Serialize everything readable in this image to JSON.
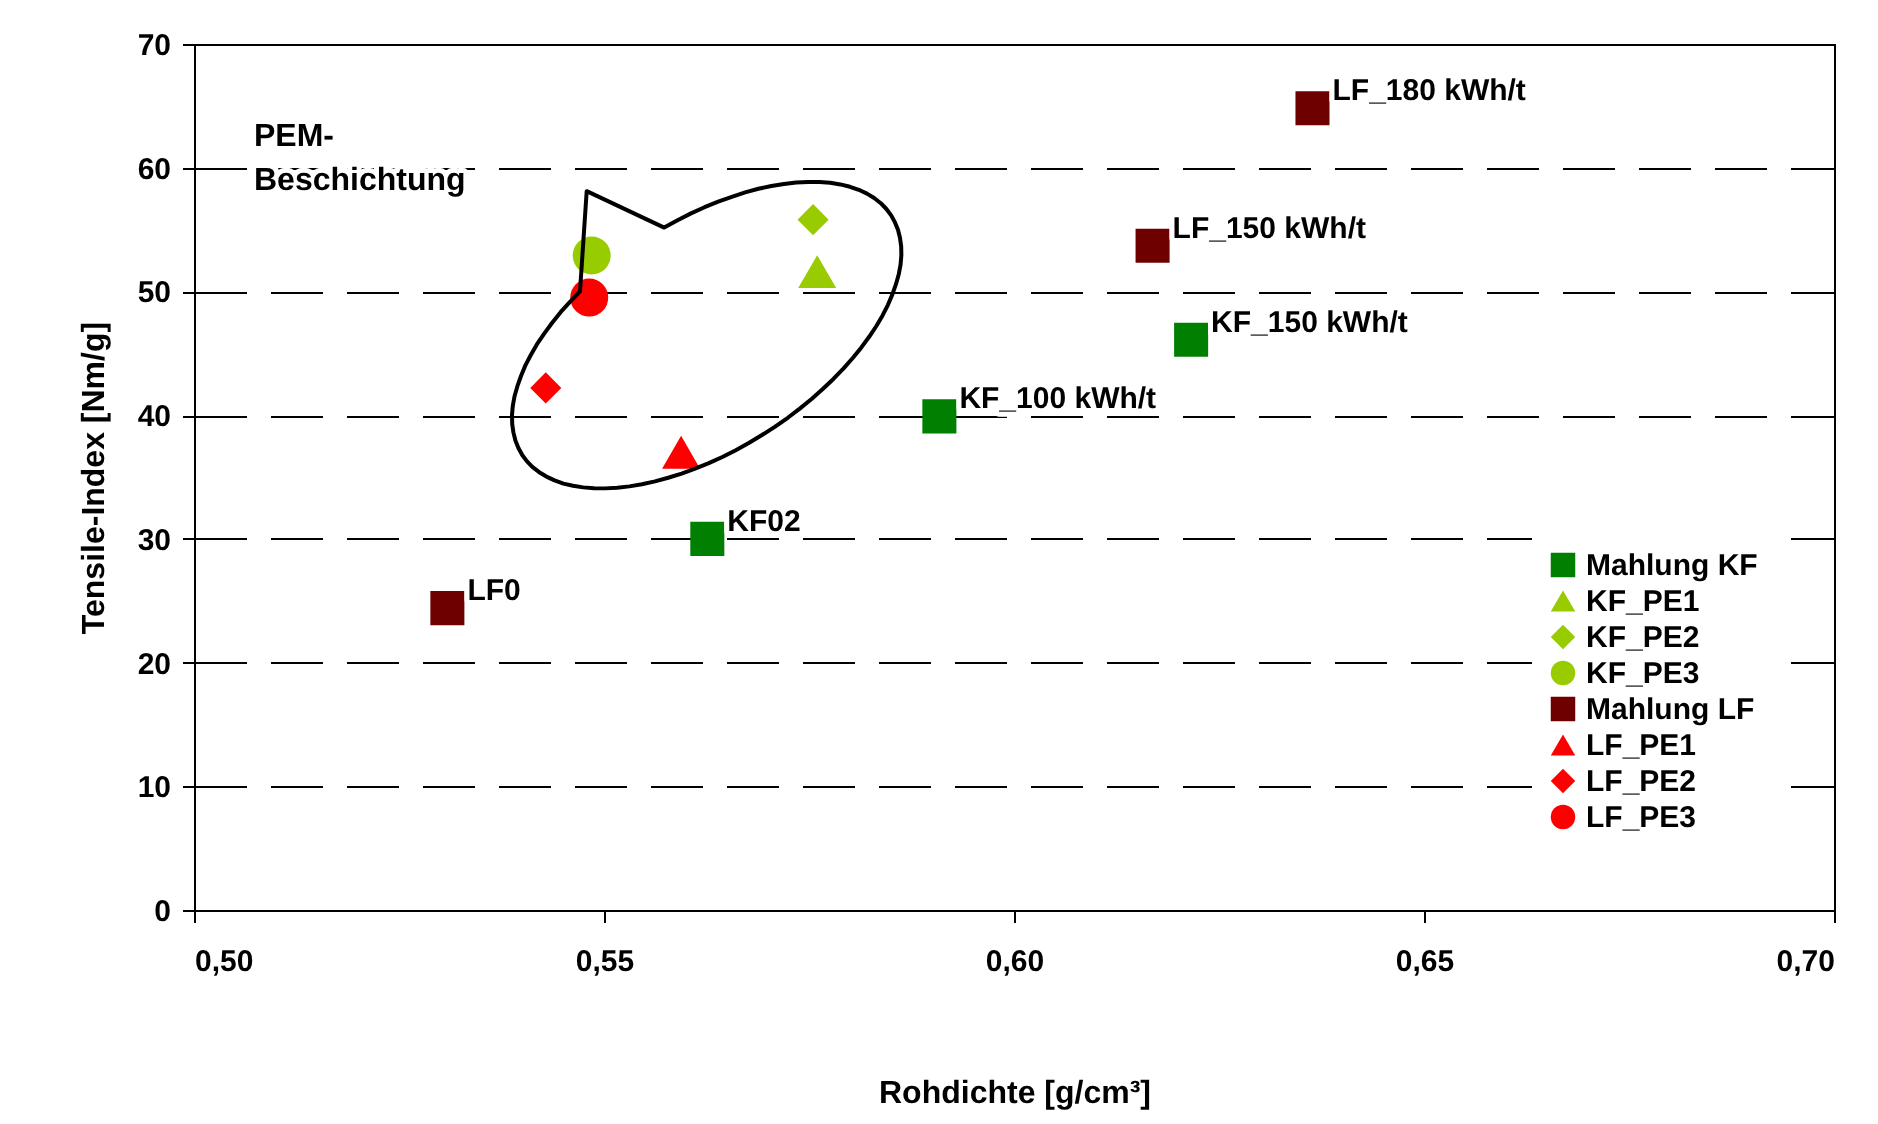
{
  "chart_data": {
    "type": "scatter",
    "xlabel": "Rohdichte [g/cm³]",
    "ylabel": "Tensile-Index [Nm/g]",
    "xlim": [
      0.5,
      0.7
    ],
    "xticks": [
      {
        "value": 0.5,
        "label": "0,50"
      },
      {
        "value": 0.55,
        "label": "0,55"
      },
      {
        "value": 0.6,
        "label": "0,60"
      },
      {
        "value": 0.65,
        "label": "0,65"
      },
      {
        "value": 0.7,
        "label": "0,70"
      }
    ],
    "ylim": [
      0,
      70
    ],
    "yticks": [
      0,
      10,
      20,
      30,
      40,
      50,
      60,
      70
    ],
    "grid": "y",
    "legend": "bottom right",
    "series": [
      {
        "name": "Mahlung KF",
        "color": "#007f00",
        "marker": "square",
        "x": [
          0.5626,
          0.5909,
          0.6216
        ],
        "values": [
          30,
          39.9,
          46.1
        ]
      },
      {
        "name": "KF_PE1",
        "color": "#99cc00",
        "marker": "triangle",
        "x": [
          0.576
        ],
        "values": [
          51.6
        ]
      },
      {
        "name": "KF_PE2",
        "color": "#99cc00",
        "marker": "diamond",
        "x": [
          0.5755
        ],
        "values": [
          55.8
        ]
      },
      {
        "name": "KF_PE3",
        "color": "#99cc00",
        "marker": "circle",
        "x": [
          0.5485
        ],
        "values": [
          52.9
        ]
      },
      {
        "name": "Mahlung LF",
        "color": "#6e0000",
        "marker": "square",
        "x": [
          0.5309,
          0.6169,
          0.6364
        ],
        "values": [
          24.4,
          53.7,
          64.8
        ]
      },
      {
        "name": "LF_PE1",
        "color": "#ff0000",
        "marker": "triangle",
        "x": [
          0.5594
        ],
        "values": [
          37.0
        ]
      },
      {
        "name": "LF_PE2",
        "color": "#ff0000",
        "marker": "diamond",
        "x": [
          0.5429
        ],
        "values": [
          42.2
        ]
      },
      {
        "name": "LF_PE3",
        "color": "#ff0000",
        "marker": "circle",
        "x": [
          0.5482
        ],
        "values": [
          49.5
        ]
      }
    ],
    "annotations": [
      {
        "text": "KF02",
        "x": 0.5626,
        "y": 30
      },
      {
        "text": "KF_100 kWh/t",
        "x": 0.5909,
        "y": 39.9
      },
      {
        "text": "KF_150 kWh/t",
        "x": 0.6216,
        "y": 46.1
      },
      {
        "text": "LF0",
        "x": 0.5309,
        "y": 24.4
      },
      {
        "text": "LF_150 kWh/t",
        "x": 0.6169,
        "y": 53.7
      },
      {
        "text": "LF_180 kWh/t",
        "x": 0.6364,
        "y": 64.8
      },
      "PEM-\nBeschichtung"
    ]
  }
}
